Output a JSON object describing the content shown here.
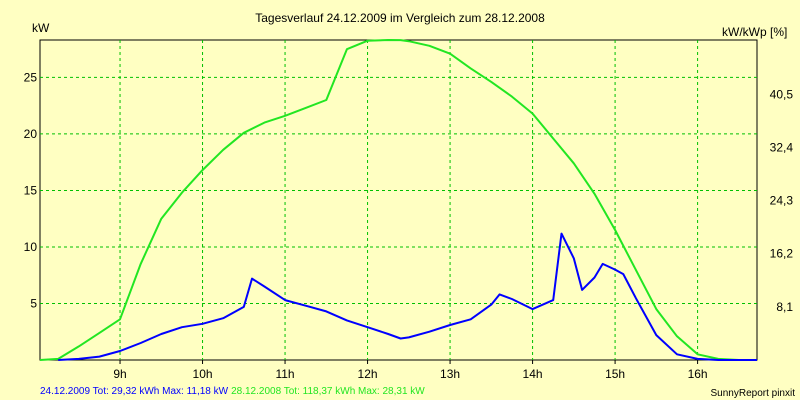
{
  "chart_data": {
    "type": "line",
    "title": "Tagesverlauf 24.12.2009 im Vergleich zum 28.12.2008",
    "ylabel_left": "kW",
    "ylabel_right": "kW/kWp [%]",
    "x_unit": "hour",
    "xlim": [
      8.03,
      16.72
    ],
    "ylim": [
      0,
      28.31
    ],
    "grid": true,
    "x_ticks": [
      {
        "value": 9,
        "label": "9h"
      },
      {
        "value": 10,
        "label": "10h"
      },
      {
        "value": 11,
        "label": "11h"
      },
      {
        "value": 12,
        "label": "12h"
      },
      {
        "value": 13,
        "label": "13h"
      },
      {
        "value": 14,
        "label": "14h"
      },
      {
        "value": 15,
        "label": "15h"
      },
      {
        "value": 16,
        "label": "16h"
      }
    ],
    "y_ticks_left": [
      {
        "value": 5,
        "label": "5"
      },
      {
        "value": 10,
        "label": "10"
      },
      {
        "value": 15,
        "label": "15"
      },
      {
        "value": 20,
        "label": "20"
      },
      {
        "value": 25,
        "label": "25"
      }
    ],
    "y_ticks_right": [
      {
        "value": 4.7,
        "label": "8,1"
      },
      {
        "value": 9.4,
        "label": "16,2"
      },
      {
        "value": 14.1,
        "label": "24,3"
      },
      {
        "value": 18.8,
        "label": "32,4"
      },
      {
        "value": 23.5,
        "label": "40,5"
      }
    ],
    "series": [
      {
        "name": "24.12.2009",
        "color": "#0000ff",
        "x": [
          8.25,
          8.5,
          8.75,
          9.0,
          9.25,
          9.5,
          9.75,
          10.0,
          10.25,
          10.5,
          10.6,
          10.75,
          11.0,
          11.25,
          11.5,
          11.75,
          12.0,
          12.25,
          12.4,
          12.5,
          12.75,
          13.0,
          13.25,
          13.5,
          13.6,
          13.75,
          14.0,
          14.25,
          14.35,
          14.5,
          14.6,
          14.75,
          14.85,
          15.0,
          15.1,
          15.25,
          15.5,
          15.75,
          16.0,
          16.25,
          16.5,
          16.72
        ],
        "y": [
          0.0,
          0.1,
          0.3,
          0.8,
          1.5,
          2.3,
          2.9,
          3.2,
          3.7,
          4.7,
          7.2,
          6.5,
          5.3,
          4.8,
          4.3,
          3.5,
          2.9,
          2.3,
          1.9,
          2.0,
          2.5,
          3.1,
          3.6,
          4.9,
          5.8,
          5.4,
          4.5,
          5.3,
          11.18,
          9.0,
          6.2,
          7.3,
          8.5,
          8.0,
          7.6,
          5.5,
          2.2,
          0.5,
          0.1,
          0.0,
          0.0,
          0.0
        ],
        "legend": "24.12.2009 Tot: 29,32 kWh Max: 11,18 kW"
      },
      {
        "name": "28.12.2008",
        "color": "#22e622",
        "x": [
          8.03,
          8.25,
          8.5,
          8.75,
          9.0,
          9.25,
          9.5,
          9.75,
          10.0,
          10.25,
          10.5,
          10.75,
          11.0,
          11.25,
          11.5,
          11.75,
          12.0,
          12.25,
          12.4,
          12.5,
          12.75,
          13.0,
          13.25,
          13.5,
          13.75,
          14.0,
          14.25,
          14.5,
          14.75,
          15.0,
          15.25,
          15.5,
          15.75,
          16.0,
          16.25,
          16.5,
          16.72
        ],
        "y": [
          0.0,
          0.1,
          1.2,
          2.4,
          3.6,
          8.5,
          12.5,
          14.8,
          16.8,
          18.6,
          20.1,
          21.0,
          21.6,
          22.3,
          23.0,
          27.5,
          28.25,
          28.31,
          28.3,
          28.2,
          27.8,
          27.1,
          25.8,
          24.6,
          23.3,
          21.8,
          19.6,
          17.4,
          14.7,
          11.5,
          8.0,
          4.5,
          2.1,
          0.5,
          0.1,
          0.0,
          0.0
        ],
        "legend": "28.12.2008 Tot: 118,37 kWh Max: 28,31 kW"
      }
    ],
    "footer_right": "SunnyReport pinxit"
  }
}
